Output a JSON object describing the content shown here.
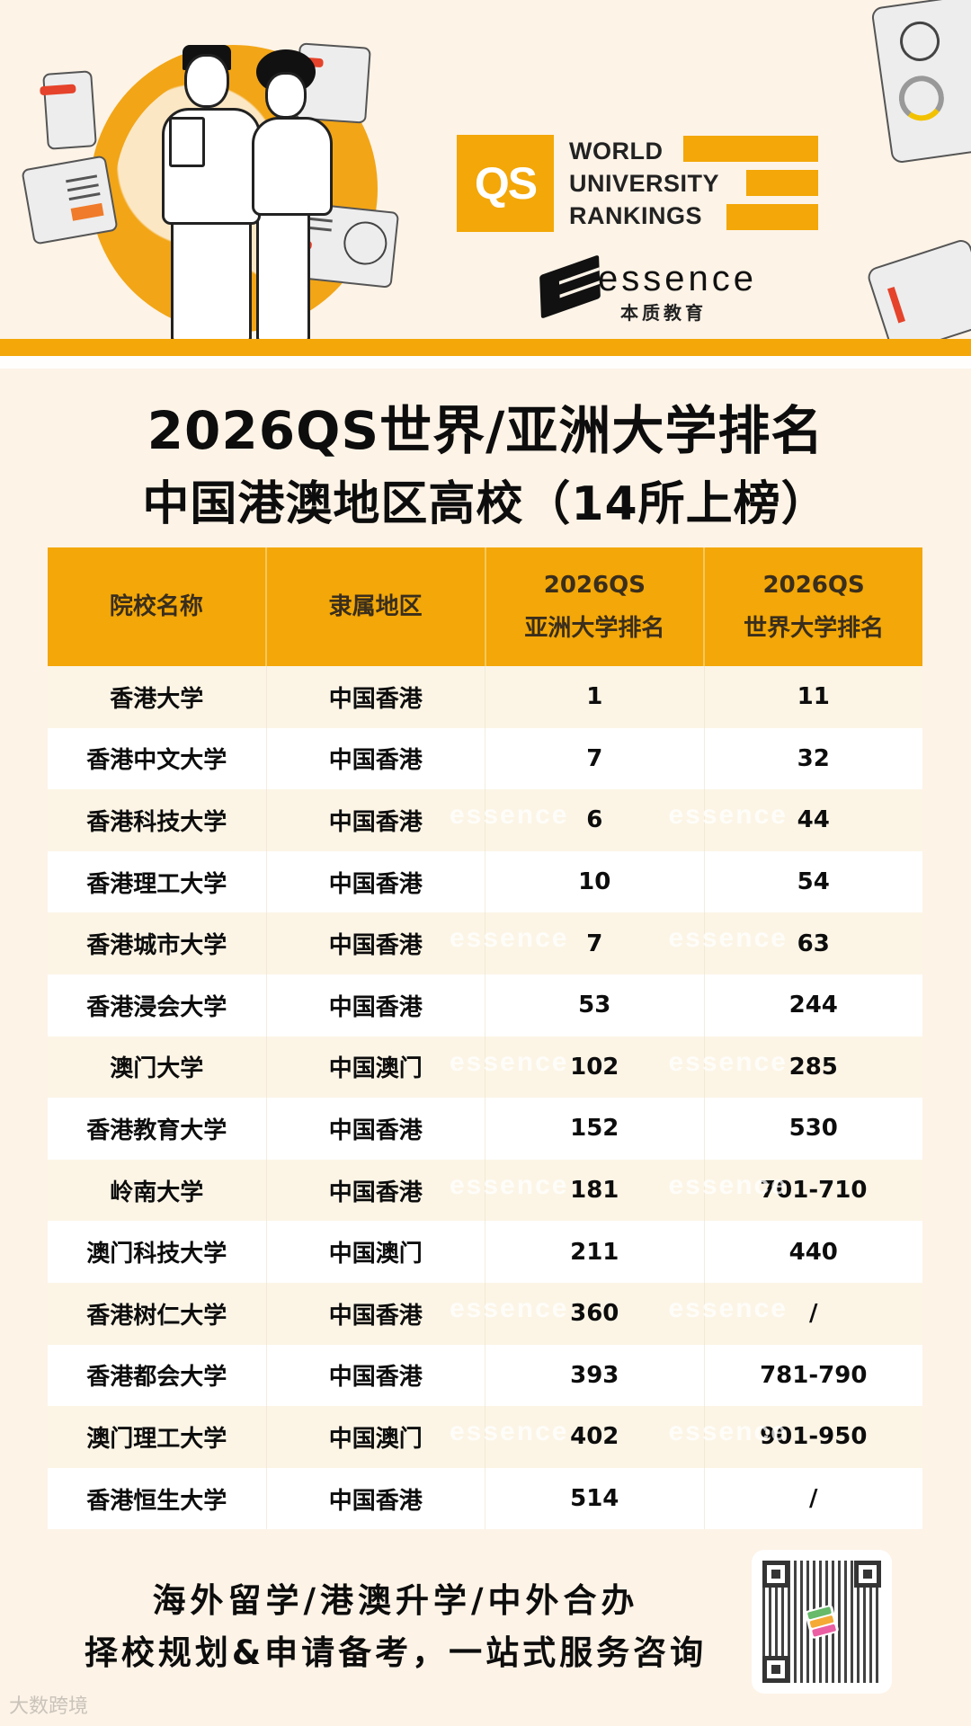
{
  "hero": {
    "qs_logo": {
      "mark": "QS",
      "lines": [
        "WORLD",
        "UNIVERSITY",
        "RANKINGS"
      ]
    },
    "brand": {
      "name": "essence",
      "cn": "本质教育"
    },
    "illustration": "two-people-globe-charts-illustration"
  },
  "colors": {
    "accent": "#F3A708",
    "background": "#FDF3E7",
    "row_alt": "#FCF5E6",
    "text": "#0D0D0D",
    "header_text": "#3A2E1C"
  },
  "title": {
    "line1": "2026QS世界/亚洲大学排名",
    "line2": "中国港澳地区高校（14所上榜）"
  },
  "table": {
    "headers": [
      {
        "line1": "院校名称",
        "line2": ""
      },
      {
        "line1": "隶属地区",
        "line2": ""
      },
      {
        "line1": "2026QS",
        "line2": "亚洲大学排名"
      },
      {
        "line1": "2026QS",
        "line2": "世界大学排名"
      }
    ],
    "rows": [
      {
        "name": "香港大学",
        "region": "中国香港",
        "asia": "1",
        "world": "11"
      },
      {
        "name": "香港中文大学",
        "region": "中国香港",
        "asia": "7",
        "world": "32"
      },
      {
        "name": "香港科技大学",
        "region": "中国香港",
        "asia": "6",
        "world": "44"
      },
      {
        "name": "香港理工大学",
        "region": "中国香港",
        "asia": "10",
        "world": "54"
      },
      {
        "name": "香港城市大学",
        "region": "中国香港",
        "asia": "7",
        "world": "63"
      },
      {
        "name": "香港浸会大学",
        "region": "中国香港",
        "asia": "53",
        "world": "244"
      },
      {
        "name": "澳门大学",
        "region": "中国澳门",
        "asia": "102",
        "world": "285"
      },
      {
        "name": "香港教育大学",
        "region": "中国香港",
        "asia": "152",
        "world": "530"
      },
      {
        "name": "岭南大学",
        "region": "中国香港",
        "asia": "181",
        "world": "701-710"
      },
      {
        "name": "澳门科技大学",
        "region": "中国澳门",
        "asia": "211",
        "world": "440"
      },
      {
        "name": "香港树仁大学",
        "region": "中国香港",
        "asia": "360",
        "world": "/"
      },
      {
        "name": "香港都会大学",
        "region": "中国香港",
        "asia": "393",
        "world": "781-790"
      },
      {
        "name": "澳门理工大学",
        "region": "中国澳门",
        "asia": "402",
        "world": "901-950"
      },
      {
        "name": "香港恒生大学",
        "region": "中国香港",
        "asia": "514",
        "world": "/"
      }
    ],
    "watermark": "essence"
  },
  "footer": {
    "line1": "海外留学/港澳升学/中外合办",
    "line2": "择校规划&申请备考，一站式服务咨询",
    "qr_code": "qr-code-icon",
    "source_mark": "大数跨境"
  }
}
